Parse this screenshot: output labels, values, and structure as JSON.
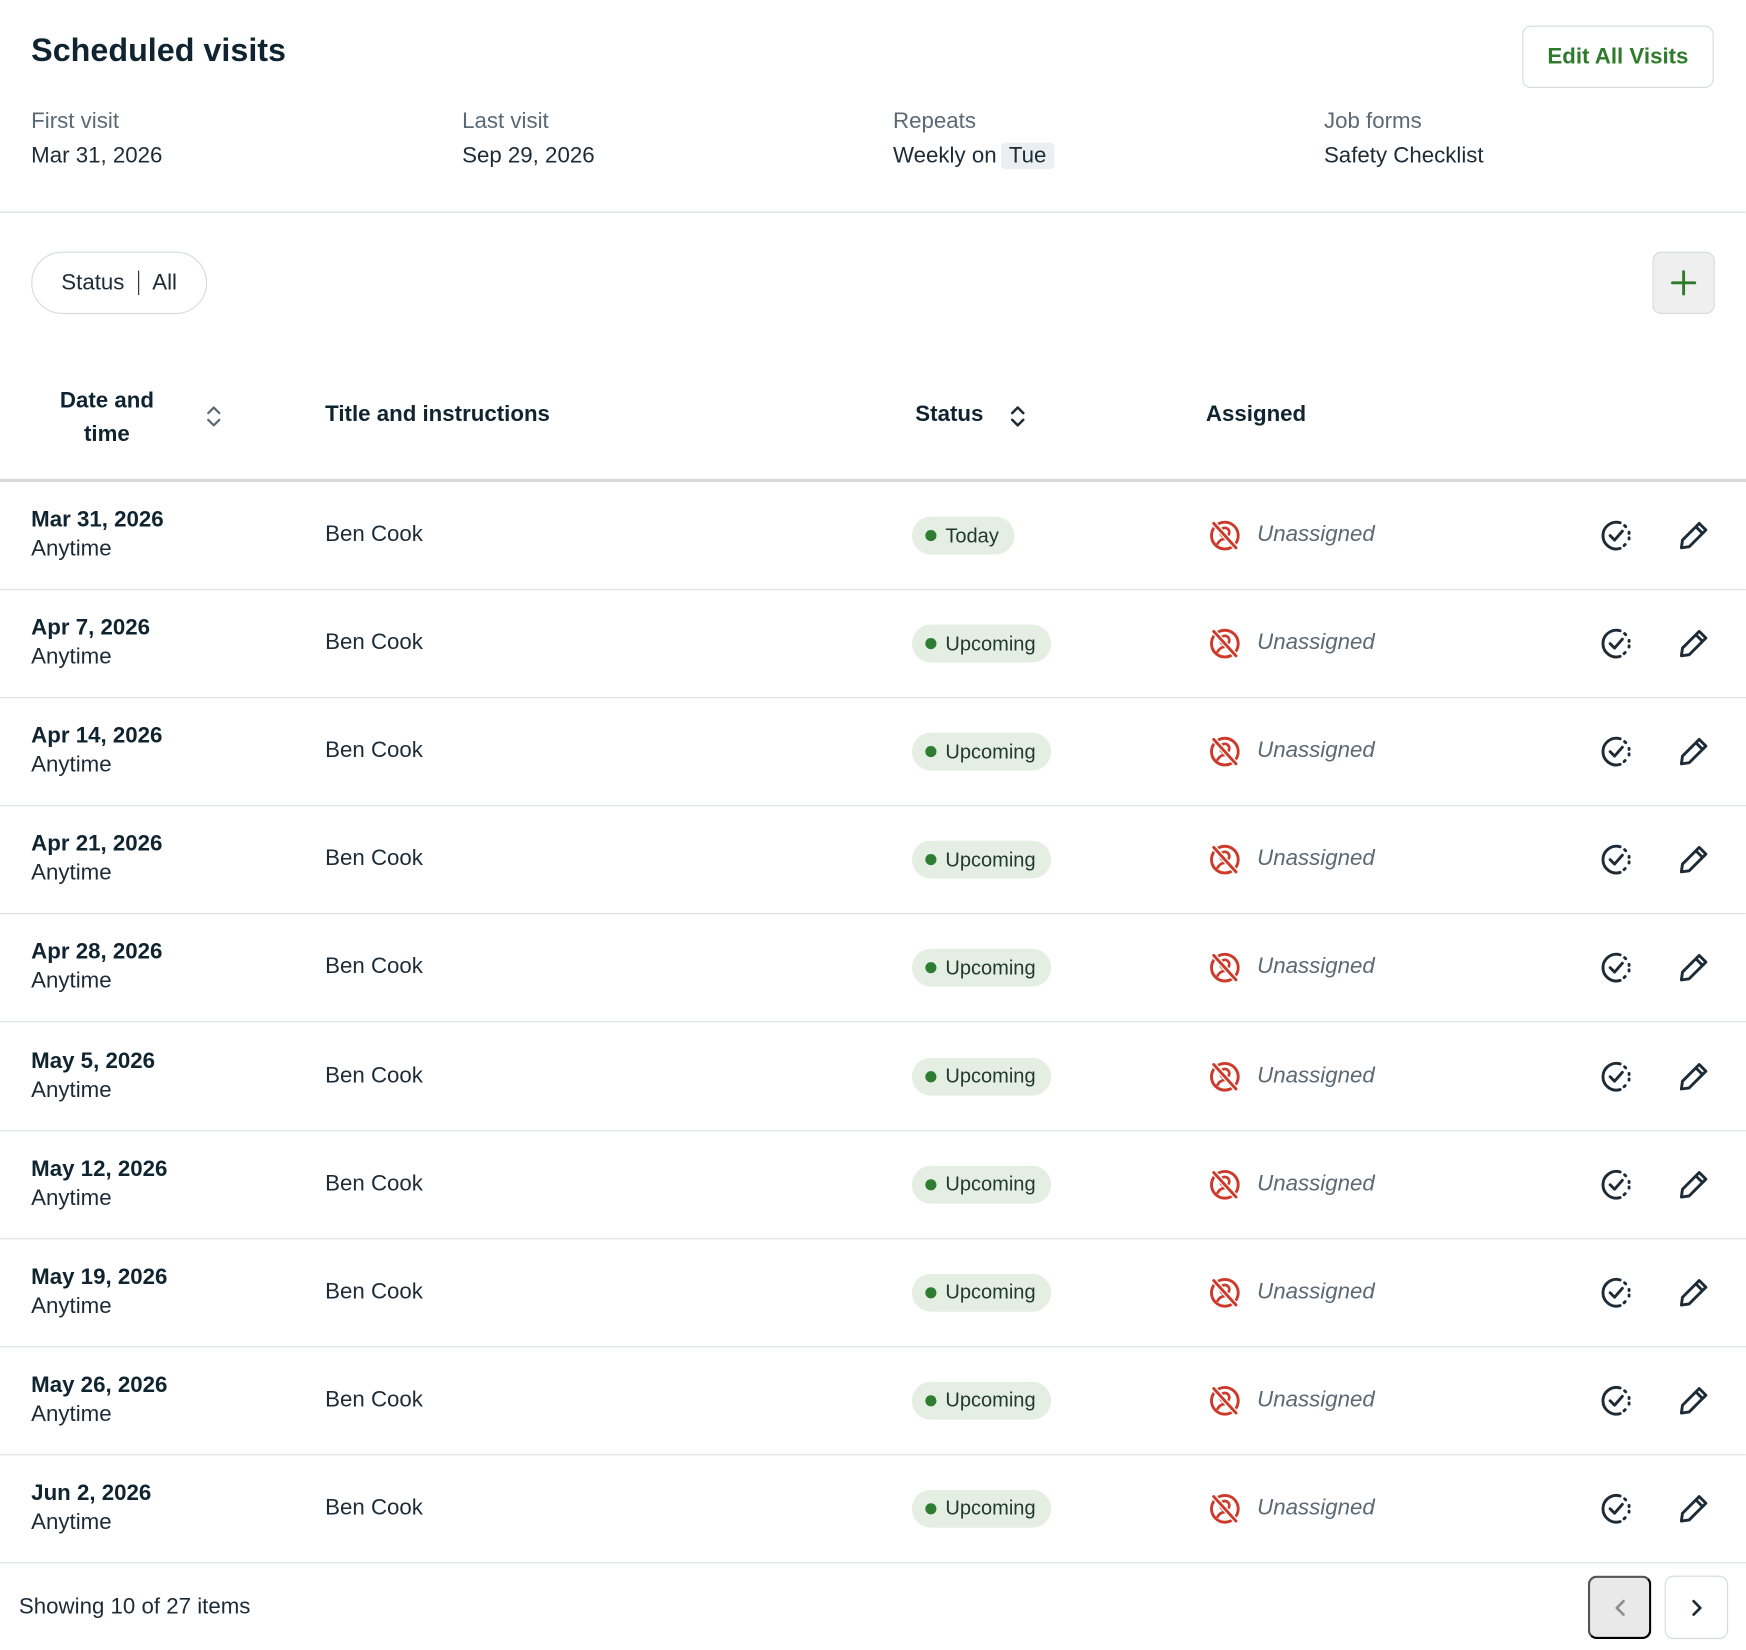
{
  "header": {
    "title": "Scheduled visits",
    "edit_all_label": "Edit All Visits"
  },
  "summary": {
    "first_visit": {
      "label": "First visit",
      "value": "Mar 31, 2026"
    },
    "last_visit": {
      "label": "Last visit",
      "value": "Sep 29, 2026"
    },
    "repeats": {
      "label": "Repeats",
      "value": "Weekly on",
      "day": "Tue"
    },
    "job_forms": {
      "label": "Job forms",
      "value": "Safety Checklist"
    }
  },
  "filter": {
    "label": "Status",
    "value": "All"
  },
  "table": {
    "columns": {
      "date": "Date and time",
      "title": "Title and instructions",
      "status": "Status",
      "assigned": "Assigned"
    },
    "rows": [
      {
        "date": "Mar 31, 2026",
        "time": "Anytime",
        "title": "Ben Cook",
        "status": "Today",
        "assigned": "Unassigned"
      },
      {
        "date": "Apr 7, 2026",
        "time": "Anytime",
        "title": "Ben Cook",
        "status": "Upcoming",
        "assigned": "Unassigned"
      },
      {
        "date": "Apr 14, 2026",
        "time": "Anytime",
        "title": "Ben Cook",
        "status": "Upcoming",
        "assigned": "Unassigned"
      },
      {
        "date": "Apr 21, 2026",
        "time": "Anytime",
        "title": "Ben Cook",
        "status": "Upcoming",
        "assigned": "Unassigned"
      },
      {
        "date": "Apr 28, 2026",
        "time": "Anytime",
        "title": "Ben Cook",
        "status": "Upcoming",
        "assigned": "Unassigned"
      },
      {
        "date": "May 5, 2026",
        "time": "Anytime",
        "title": "Ben Cook",
        "status": "Upcoming",
        "assigned": "Unassigned"
      },
      {
        "date": "May 12, 2026",
        "time": "Anytime",
        "title": "Ben Cook",
        "status": "Upcoming",
        "assigned": "Unassigned"
      },
      {
        "date": "May 19, 2026",
        "time": "Anytime",
        "title": "Ben Cook",
        "status": "Upcoming",
        "assigned": "Unassigned"
      },
      {
        "date": "May 26, 2026",
        "time": "Anytime",
        "title": "Ben Cook",
        "status": "Upcoming",
        "assigned": "Unassigned"
      },
      {
        "date": "Jun 2, 2026",
        "time": "Anytime",
        "title": "Ben Cook",
        "status": "Upcoming",
        "assigned": "Unassigned"
      }
    ]
  },
  "footer": {
    "showing": "Showing 10 of 27 items"
  },
  "colors": {
    "accent": "#2f7a2c",
    "unassigned": "#cc3a2b",
    "badge_bg": "#e4eee2"
  }
}
